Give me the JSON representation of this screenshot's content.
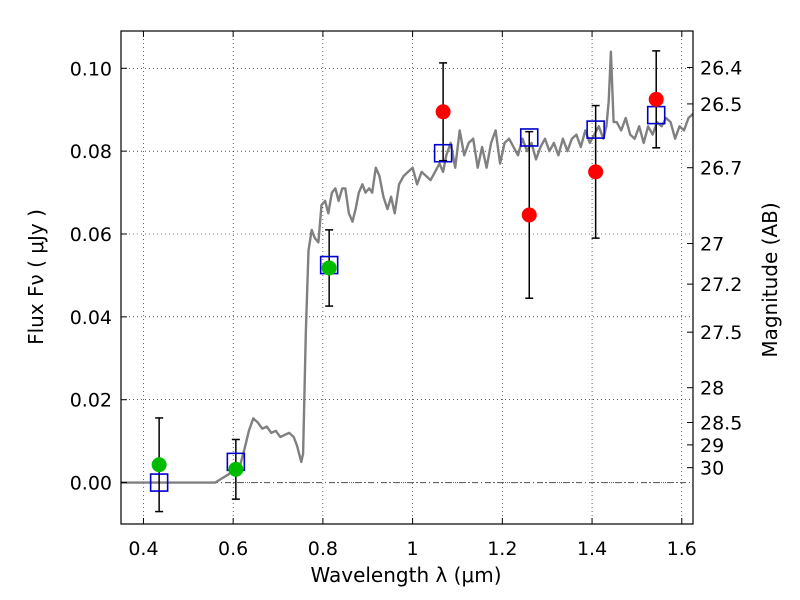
{
  "chart_data": {
    "type": "scatter",
    "title": "",
    "xlabel": "Wavelength  λ (μm)",
    "ylabel": "Flux  Fν  ( μJy )",
    "y2label": "Magnitude (AB)",
    "xlim": [
      0.35,
      1.625
    ],
    "ylim": [
      -0.01,
      0.109
    ],
    "grid": true,
    "x_ticks": [
      0.4,
      0.6,
      0.8,
      1.0,
      1.2,
      1.4,
      1.6
    ],
    "x_tick_labels": [
      "0.4",
      "0.6",
      "0.8",
      "1",
      "1.2",
      "1.4",
      "1.6"
    ],
    "y_ticks": [
      0.0,
      0.02,
      0.04,
      0.06,
      0.08,
      0.1
    ],
    "y_tick_labels": [
      "0.00",
      "0.02",
      "0.04",
      "0.06",
      "0.08",
      "0.10"
    ],
    "y2_ticks": [
      {
        "label": "26.4",
        "flux": 0.1002
      },
      {
        "label": "26.5",
        "flux": 0.0914
      },
      {
        "label": "26.7",
        "flux": 0.076
      },
      {
        "label": "27",
        "flux": 0.0577
      },
      {
        "label": "27.2",
        "flux": 0.0479
      },
      {
        "label": "27.5",
        "flux": 0.0363
      },
      {
        "label": "28",
        "flux": 0.0229
      },
      {
        "label": "28.5",
        "flux": 0.0145
      },
      {
        "label": "29",
        "flux": 0.0091
      },
      {
        "label": "30",
        "flux": 0.0036
      }
    ],
    "colors": {
      "model": "#808080",
      "green": "#00bb00",
      "red": "#ff0000",
      "square": "#0000cc",
      "errorbar": "#000000"
    },
    "model_spectrum": {
      "x": [
        0.35,
        0.56,
        0.575,
        0.59,
        0.6,
        0.615,
        0.625,
        0.635,
        0.645,
        0.655,
        0.665,
        0.675,
        0.685,
        0.695,
        0.705,
        0.715,
        0.725,
        0.735,
        0.742,
        0.748,
        0.752,
        0.756,
        0.762,
        0.768,
        0.775,
        0.782,
        0.79,
        0.797,
        0.805,
        0.812,
        0.82,
        0.828,
        0.835,
        0.843,
        0.85,
        0.858,
        0.866,
        0.873,
        0.88,
        0.888,
        0.895,
        0.903,
        0.91,
        0.918,
        0.926,
        0.935,
        0.944,
        0.952,
        0.96,
        0.97,
        0.98,
        0.99,
        1.0,
        1.01,
        1.02,
        1.03,
        1.04,
        1.05,
        1.06,
        1.068,
        1.075,
        1.085,
        1.095,
        1.105,
        1.115,
        1.125,
        1.135,
        1.145,
        1.155,
        1.165,
        1.175,
        1.185,
        1.195,
        1.205,
        1.215,
        1.225,
        1.235,
        1.245,
        1.255,
        1.265,
        1.275,
        1.285,
        1.295,
        1.305,
        1.315,
        1.325,
        1.335,
        1.345,
        1.355,
        1.365,
        1.375,
        1.385,
        1.395,
        1.405,
        1.415,
        1.425,
        1.432,
        1.437,
        1.442,
        1.448,
        1.455,
        1.465,
        1.475,
        1.485,
        1.495,
        1.505,
        1.515,
        1.525,
        1.535,
        1.545,
        1.555,
        1.565,
        1.575,
        1.585,
        1.595,
        1.605,
        1.615,
        1.625
      ],
      "y": [
        0.0,
        0.0,
        0.001,
        0.002,
        0.003,
        0.004,
        0.008,
        0.0125,
        0.0155,
        0.0145,
        0.013,
        0.0135,
        0.012,
        0.0125,
        0.011,
        0.0115,
        0.012,
        0.011,
        0.009,
        0.0065,
        0.005,
        0.007,
        0.036,
        0.056,
        0.061,
        0.059,
        0.058,
        0.067,
        0.068,
        0.065,
        0.07,
        0.071,
        0.068,
        0.071,
        0.071,
        0.065,
        0.063,
        0.066,
        0.07,
        0.072,
        0.07,
        0.071,
        0.07,
        0.076,
        0.074,
        0.069,
        0.066,
        0.069,
        0.065,
        0.072,
        0.074,
        0.075,
        0.076,
        0.072,
        0.075,
        0.074,
        0.073,
        0.075,
        0.077,
        0.075,
        0.079,
        0.082,
        0.076,
        0.085,
        0.079,
        0.082,
        0.083,
        0.076,
        0.081,
        0.076,
        0.082,
        0.085,
        0.077,
        0.082,
        0.083,
        0.081,
        0.079,
        0.083,
        0.08,
        0.082,
        0.078,
        0.081,
        0.083,
        0.08,
        0.082,
        0.079,
        0.083,
        0.08,
        0.083,
        0.084,
        0.081,
        0.085,
        0.082,
        0.084,
        0.086,
        0.083,
        0.086,
        0.092,
        0.104,
        0.087,
        0.087,
        0.085,
        0.088,
        0.084,
        0.083,
        0.086,
        0.082,
        0.086,
        0.084,
        0.087,
        0.086,
        0.088,
        0.087,
        0.083,
        0.086,
        0.085,
        0.088,
        0.089
      ]
    },
    "series": [
      {
        "marker": "circle",
        "color": "green",
        "points": [
          {
            "x": 0.435,
            "y": 0.0043,
            "err": 0.0113
          },
          {
            "x": 0.606,
            "y": 0.0032,
            "err": 0.0072
          },
          {
            "x": 0.814,
            "y": 0.0518,
            "err": 0.0092
          }
        ]
      },
      {
        "marker": "circle",
        "color": "red",
        "points": [
          {
            "x": 1.068,
            "y": 0.0895,
            "err": 0.0118
          },
          {
            "x": 1.26,
            "y": 0.0646,
            "err": 0.0201
          },
          {
            "x": 1.408,
            "y": 0.075,
            "err": 0.016
          },
          {
            "x": 1.543,
            "y": 0.0925,
            "err": 0.0117
          }
        ]
      },
      {
        "marker": "square",
        "color": "square",
        "points": [
          {
            "x": 0.435,
            "y": 0.0
          },
          {
            "x": 0.606,
            "y": 0.005
          },
          {
            "x": 0.814,
            "y": 0.0525
          },
          {
            "x": 1.068,
            "y": 0.0795
          },
          {
            "x": 1.26,
            "y": 0.0833
          },
          {
            "x": 1.408,
            "y": 0.0852
          },
          {
            "x": 1.543,
            "y": 0.0887
          }
        ]
      }
    ]
  }
}
